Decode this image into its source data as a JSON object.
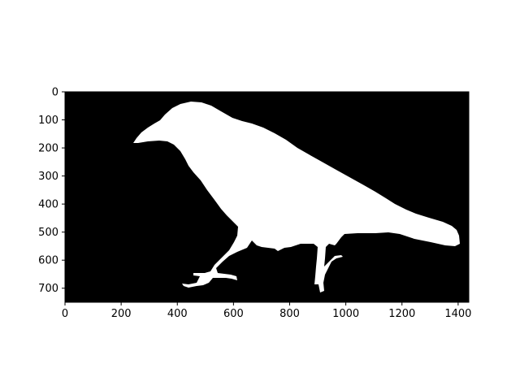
{
  "image": {
    "background_color": "#000000",
    "mask_color": "#ffffff",
    "subject": "bird-silhouette-icon",
    "xlim": [
      0,
      1438
    ],
    "ylim": [
      750,
      0
    ]
  },
  "axes": {
    "x_ticks": [
      {
        "value": 0,
        "label": "0"
      },
      {
        "value": 200,
        "label": "200"
      },
      {
        "value": 400,
        "label": "400"
      },
      {
        "value": 600,
        "label": "600"
      },
      {
        "value": 800,
        "label": "800"
      },
      {
        "value": 1000,
        "label": "1000"
      },
      {
        "value": 1200,
        "label": "1200"
      },
      {
        "value": 1400,
        "label": "1400"
      }
    ],
    "y_ticks": [
      {
        "value": 0,
        "label": "0"
      },
      {
        "value": 100,
        "label": "100"
      },
      {
        "value": 200,
        "label": "200"
      },
      {
        "value": 300,
        "label": "300"
      },
      {
        "value": 400,
        "label": "400"
      },
      {
        "value": 500,
        "label": "500"
      },
      {
        "value": 600,
        "label": "600"
      },
      {
        "value": 700,
        "label": "700"
      }
    ]
  }
}
